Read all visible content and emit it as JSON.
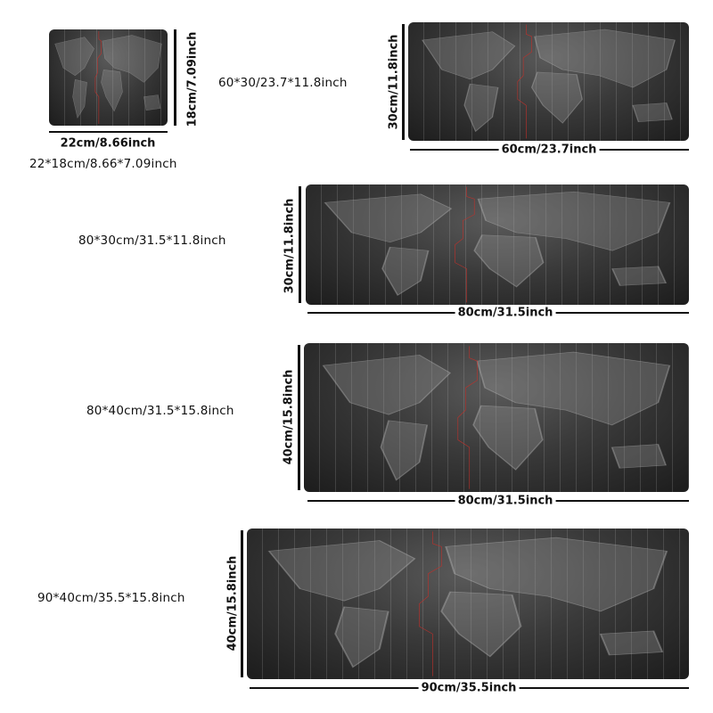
{
  "colors": {
    "mat_dark": "#1c1c1c",
    "mat_light": "#5a5a5a",
    "dateline_red": "#c0302a",
    "text": "#111111"
  },
  "mats": [
    {
      "size": "22*18cm/8.66*7.09inch",
      "width_label": "22cm/8.66inch",
      "height_label": "18cm/7.09inch"
    },
    {
      "size": "60*30/23.7*11.8inch",
      "width_label": "60cm/23.7inch",
      "height_label": "30cm/11.8inch"
    },
    {
      "size": "80*30cm/31.5*11.8inch",
      "width_label": "80cm/31.5inch",
      "height_label": "30cm/11.8inch"
    },
    {
      "size": "80*40cm/31.5*15.8inch",
      "width_label": "80cm/31.5inch",
      "height_label": "40cm/15.8inch"
    },
    {
      "size": "90*40cm/35.5*15.8inch",
      "width_label": "90cm/35.5inch",
      "height_label": "40cm/15.8inch"
    }
  ]
}
